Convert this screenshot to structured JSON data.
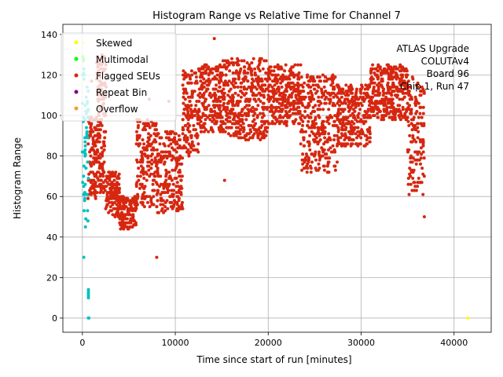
{
  "chart_data": {
    "type": "scatter",
    "title": "Histogram Range vs Relative Time for Channel 7",
    "xlabel": "Time since start of run [minutes]",
    "ylabel": "Histogram Range",
    "xlim": [
      -2100,
      44000
    ],
    "ylim": [
      -7,
      145
    ],
    "xticks": [
      0,
      10000,
      20000,
      30000,
      40000
    ],
    "xtick_labels": [
      "0",
      "10000",
      "20000",
      "30000",
      "40000"
    ],
    "yticks": [
      0,
      20,
      40,
      60,
      80,
      100,
      120,
      140
    ],
    "ytick_labels": [
      "0",
      "20",
      "40",
      "60",
      "80",
      "100",
      "120",
      "140"
    ],
    "grid": true,
    "legend_position": "top-left",
    "annotation": [
      "ATLAS Upgrade",
      "COLUTAv4",
      "Board 96",
      "Chip 1, Run 47"
    ],
    "series": [
      {
        "name": "Skewed",
        "color": "#ffff00",
        "points": [
          [
            41500,
            0
          ],
          [
            150,
            136
          ],
          [
            200,
            128
          ]
        ]
      },
      {
        "name": "Multimodal",
        "color": "#00ff00",
        "points": [
          [
            100,
            128
          ],
          [
            50,
            129
          ],
          [
            120,
            127
          ]
        ]
      },
      {
        "name": "Flagged SEUs",
        "color": "#d62710",
        "segments": [
          {
            "x": [
              600,
              1500
            ],
            "y": [
              55,
              100
            ]
          },
          {
            "x": [
              1500,
              2600
            ],
            "y": [
              95,
              130
            ]
          },
          {
            "x": [
              1200,
              2500
            ],
            "y": [
              62,
              95
            ]
          },
          {
            "x": [
              2500,
              4000
            ],
            "y": [
              50,
              72
            ]
          },
          {
            "x": [
              4000,
              5800
            ],
            "y": [
              44,
              60
            ]
          },
          {
            "x": [
              5800,
              8000
            ],
            "y": [
              55,
              98
            ]
          },
          {
            "x": [
              8000,
              10800
            ],
            "y": [
              52,
              92
            ]
          },
          {
            "x": [
              10800,
              12500
            ],
            "y": [
              80,
              122
            ]
          },
          {
            "x": [
              12500,
              15000
            ],
            "y": [
              92,
              125
            ]
          },
          {
            "x": [
              15000,
              20000
            ],
            "y": [
              88,
              128
            ]
          },
          {
            "x": [
              20000,
              23500
            ],
            "y": [
              95,
              125
            ]
          },
          {
            "x": [
              23500,
              27500
            ],
            "y": [
              72,
              120
            ]
          },
          {
            "x": [
              27500,
              31000
            ],
            "y": [
              85,
              115
            ]
          },
          {
            "x": [
              31000,
              35000
            ],
            "y": [
              98,
              125
            ]
          },
          {
            "x": [
              35000,
              36800
            ],
            "y": [
              60,
              120
            ]
          }
        ],
        "points": [
          [
            8000,
            30
          ],
          [
            7200,
            108
          ],
          [
            14200,
            138
          ],
          [
            15300,
            68
          ],
          [
            36800,
            50
          ],
          [
            9300,
            107
          ],
          [
            1000,
            117
          ]
        ]
      },
      {
        "name": "Repeat Bin",
        "color": "#800080",
        "points": []
      },
      {
        "name": "Overflow",
        "color": "#f0a030",
        "points": []
      },
      {
        "name": "",
        "color": "#00c0c0",
        "segments": [
          {
            "x": [
              0,
              650
            ],
            "y": [
              42,
              125
            ]
          }
        ],
        "points": [
          [
            150,
            30
          ],
          [
            650,
            14
          ],
          [
            650,
            13
          ],
          [
            650,
            12
          ],
          [
            650,
            11
          ],
          [
            650,
            10
          ],
          [
            650,
            0
          ],
          [
            700,
            0
          ]
        ]
      }
    ]
  }
}
